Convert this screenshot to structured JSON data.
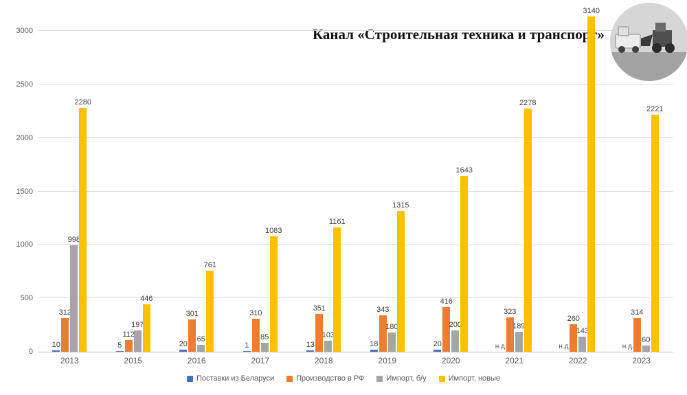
{
  "title": "Канал «Строительная техника и транспорт»",
  "no_data_label": "н.д.",
  "chart_data": {
    "type": "bar",
    "categories": [
      "2013",
      "2015",
      "2016",
      "2017",
      "2018",
      "2019",
      "2020",
      "2021",
      "2022",
      "2023"
    ],
    "series": [
      {
        "name": "Поставки из Беларуси",
        "color": "#4472C4",
        "values": [
          10,
          5,
          20,
          1,
          13,
          18,
          20,
          null,
          null,
          null
        ]
      },
      {
        "name": "Производство в РФ",
        "color": "#ED7D31",
        "values": [
          312,
          112,
          301,
          310,
          351,
          343,
          416,
          323,
          260,
          314
        ]
      },
      {
        "name": "Импорт, б/у",
        "color": "#A5A5A5",
        "values": [
          998,
          197,
          65,
          85,
          103,
          180,
          200,
          189,
          143,
          60
        ]
      },
      {
        "name": "Импорт, новые",
        "color": "#FFC000",
        "values": [
          2280,
          446,
          761,
          1083,
          1161,
          1315,
          1643,
          2278,
          3140,
          2221
        ]
      }
    ],
    "ylim": [
      0,
      3150
    ],
    "yticks": [
      0,
      500,
      1000,
      1500,
      2000,
      2500,
      3000
    ],
    "grid": true,
    "legend_position": "bottom"
  }
}
